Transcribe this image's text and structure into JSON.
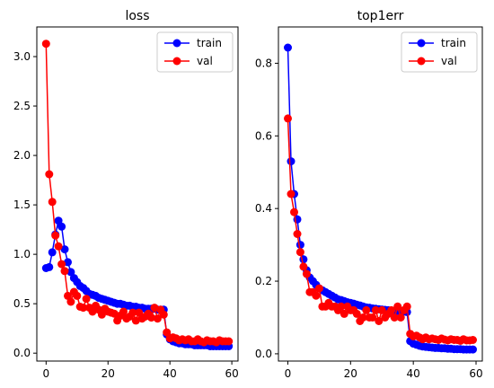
{
  "chart_data": [
    {
      "type": "line",
      "title": "loss",
      "xlabel": "",
      "ylabel": "",
      "xlim": [
        -3,
        62
      ],
      "ylim": [
        -0.08,
        3.3
      ],
      "xticks": [
        "0",
        "20",
        "40",
        "60"
      ],
      "yticks": [
        "0.0",
        "0.5",
        "1.0",
        "1.5",
        "2.0",
        "2.5",
        "3.0"
      ],
      "legend": "top-right",
      "grid": false,
      "series": [
        {
          "name": "train",
          "color": "#0000ff",
          "x": [
            0,
            1,
            2,
            3,
            4,
            5,
            6,
            7,
            8,
            9,
            10,
            11,
            12,
            13,
            14,
            15,
            16,
            17,
            18,
            19,
            20,
            21,
            22,
            23,
            24,
            25,
            26,
            27,
            28,
            29,
            30,
            31,
            32,
            33,
            34,
            35,
            36,
            37,
            38,
            39,
            40,
            41,
            42,
            43,
            44,
            45,
            46,
            47,
            48,
            49,
            50,
            51,
            52,
            53,
            54,
            55,
            56,
            57,
            58,
            59
          ],
          "values": [
            0.86,
            0.87,
            1.02,
            1.2,
            1.34,
            1.28,
            1.05,
            0.92,
            0.82,
            0.76,
            0.72,
            0.68,
            0.66,
            0.63,
            0.6,
            0.59,
            0.58,
            0.56,
            0.55,
            0.54,
            0.53,
            0.52,
            0.51,
            0.5,
            0.5,
            0.49,
            0.48,
            0.48,
            0.47,
            0.47,
            0.46,
            0.46,
            0.45,
            0.45,
            0.45,
            0.45,
            0.44,
            0.44,
            0.44,
            0.19,
            0.14,
            0.12,
            0.11,
            0.1,
            0.1,
            0.09,
            0.09,
            0.09,
            0.08,
            0.08,
            0.08,
            0.08,
            0.08,
            0.07,
            0.07,
            0.07,
            0.07,
            0.07,
            0.07,
            0.07
          ]
        },
        {
          "name": "val",
          "color": "#ff0000",
          "x": [
            0,
            1,
            2,
            3,
            4,
            5,
            6,
            7,
            8,
            9,
            10,
            11,
            12,
            13,
            14,
            15,
            16,
            17,
            18,
            19,
            20,
            21,
            22,
            23,
            24,
            25,
            26,
            27,
            28,
            29,
            30,
            31,
            32,
            33,
            34,
            35,
            36,
            37,
            38,
            39,
            40,
            41,
            42,
            43,
            44,
            45,
            46,
            47,
            48,
            49,
            50,
            51,
            52,
            53,
            54,
            55,
            56,
            57,
            58,
            59
          ],
          "values": [
            3.13,
            1.81,
            1.53,
            1.19,
            1.08,
            0.9,
            0.83,
            0.58,
            0.52,
            0.62,
            0.58,
            0.47,
            0.46,
            0.55,
            0.46,
            0.42,
            0.48,
            0.44,
            0.39,
            0.45,
            0.42,
            0.41,
            0.4,
            0.33,
            0.38,
            0.42,
            0.35,
            0.37,
            0.41,
            0.33,
            0.41,
            0.35,
            0.37,
            0.4,
            0.36,
            0.46,
            0.35,
            0.44,
            0.39,
            0.21,
            0.15,
            0.16,
            0.15,
            0.13,
            0.14,
            0.13,
            0.14,
            0.12,
            0.12,
            0.14,
            0.12,
            0.11,
            0.13,
            0.12,
            0.12,
            0.11,
            0.13,
            0.12,
            0.12,
            0.12
          ]
        }
      ]
    },
    {
      "type": "line",
      "title": "top1err",
      "xlabel": "",
      "ylabel": "",
      "xlim": [
        -3,
        62
      ],
      "ylim": [
        -0.02,
        0.9
      ],
      "xticks": [
        "0",
        "20",
        "40",
        "60"
      ],
      "yticks": [
        "0.0",
        "0.2",
        "0.4",
        "0.6",
        "0.8"
      ],
      "legend": "top-right",
      "grid": false,
      "series": [
        {
          "name": "train",
          "color": "#0000ff",
          "x": [
            0,
            1,
            2,
            3,
            4,
            5,
            6,
            7,
            8,
            9,
            10,
            11,
            12,
            13,
            14,
            15,
            16,
            17,
            18,
            19,
            20,
            21,
            22,
            23,
            24,
            25,
            26,
            27,
            28,
            29,
            30,
            31,
            32,
            33,
            34,
            35,
            36,
            37,
            38,
            39,
            40,
            41,
            42,
            43,
            44,
            45,
            46,
            47,
            48,
            49,
            50,
            51,
            52,
            53,
            54,
            55,
            56,
            57,
            58,
            59
          ],
          "values": [
            0.843,
            0.53,
            0.44,
            0.37,
            0.3,
            0.26,
            0.23,
            0.21,
            0.2,
            0.19,
            0.18,
            0.175,
            0.17,
            0.165,
            0.16,
            0.155,
            0.15,
            0.148,
            0.145,
            0.142,
            0.14,
            0.138,
            0.135,
            0.133,
            0.13,
            0.128,
            0.127,
            0.125,
            0.124,
            0.123,
            0.122,
            0.121,
            0.12,
            0.119,
            0.118,
            0.118,
            0.117,
            0.116,
            0.115,
            0.035,
            0.028,
            0.025,
            0.022,
            0.02,
            0.019,
            0.018,
            0.017,
            0.016,
            0.016,
            0.015,
            0.015,
            0.014,
            0.014,
            0.013,
            0.013,
            0.013,
            0.012,
            0.012,
            0.012,
            0.012
          ]
        },
        {
          "name": "val",
          "color": "#ff0000",
          "x": [
            0,
            1,
            2,
            3,
            4,
            5,
            6,
            7,
            8,
            9,
            10,
            11,
            12,
            13,
            14,
            15,
            16,
            17,
            18,
            19,
            20,
            21,
            22,
            23,
            24,
            25,
            26,
            27,
            28,
            29,
            30,
            31,
            32,
            33,
            34,
            35,
            36,
            37,
            38,
            39,
            40,
            41,
            42,
            43,
            44,
            45,
            46,
            47,
            48,
            49,
            50,
            51,
            52,
            53,
            54,
            55,
            56,
            57,
            58,
            59
          ],
          "values": [
            0.648,
            0.44,
            0.39,
            0.33,
            0.28,
            0.24,
            0.22,
            0.17,
            0.17,
            0.16,
            0.18,
            0.13,
            0.13,
            0.14,
            0.13,
            0.13,
            0.12,
            0.13,
            0.11,
            0.13,
            0.12,
            0.12,
            0.11,
            0.09,
            0.1,
            0.12,
            0.1,
            0.1,
            0.12,
            0.09,
            0.12,
            0.1,
            0.11,
            0.12,
            0.1,
            0.13,
            0.1,
            0.12,
            0.13,
            0.055,
            0.048,
            0.05,
            0.045,
            0.04,
            0.045,
            0.04,
            0.042,
            0.04,
            0.038,
            0.042,
            0.039,
            0.037,
            0.04,
            0.038,
            0.038,
            0.036,
            0.04,
            0.037,
            0.037,
            0.038
          ]
        }
      ]
    }
  ]
}
